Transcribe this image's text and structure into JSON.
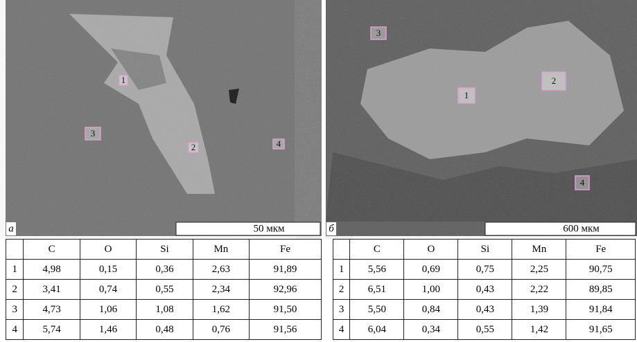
{
  "panels": [
    {
      "label": "а",
      "scale_bar": "50 мкм",
      "points": [
        "1",
        "2",
        "3",
        "4"
      ],
      "table": {
        "columns": [
          "C",
          "O",
          "Si",
          "Mn",
          "Fe"
        ],
        "rows": [
          [
            "1",
            "4,98",
            "0,15",
            "0,36",
            "2,63",
            "91,89"
          ],
          [
            "2",
            "3,41",
            "0,74",
            "0,55",
            "2,34",
            "92,96"
          ],
          [
            "3",
            "4,73",
            "1,06",
            "1,08",
            "1,62",
            "91,50"
          ],
          [
            "4",
            "5,74",
            "1,46",
            "0,48",
            "0,76",
            "91,56"
          ]
        ]
      }
    },
    {
      "label": "б",
      "scale_bar": "600 мкм",
      "points": [
        "1",
        "2",
        "3",
        "4"
      ],
      "table": {
        "columns": [
          "C",
          "O",
          "Si",
          "Mn",
          "Fe"
        ],
        "rows": [
          [
            "1",
            "5,56",
            "0,69",
            "0,75",
            "2,25",
            "90,75"
          ],
          [
            "2",
            "6,51",
            "1,00",
            "0,43",
            "2,22",
            "89,85"
          ],
          [
            "3",
            "5,50",
            "0,84",
            "0,43",
            "1,39",
            "91,84"
          ],
          [
            "4",
            "6,04",
            "0,34",
            "0,55",
            "1,42",
            "91,65"
          ]
        ]
      }
    }
  ]
}
